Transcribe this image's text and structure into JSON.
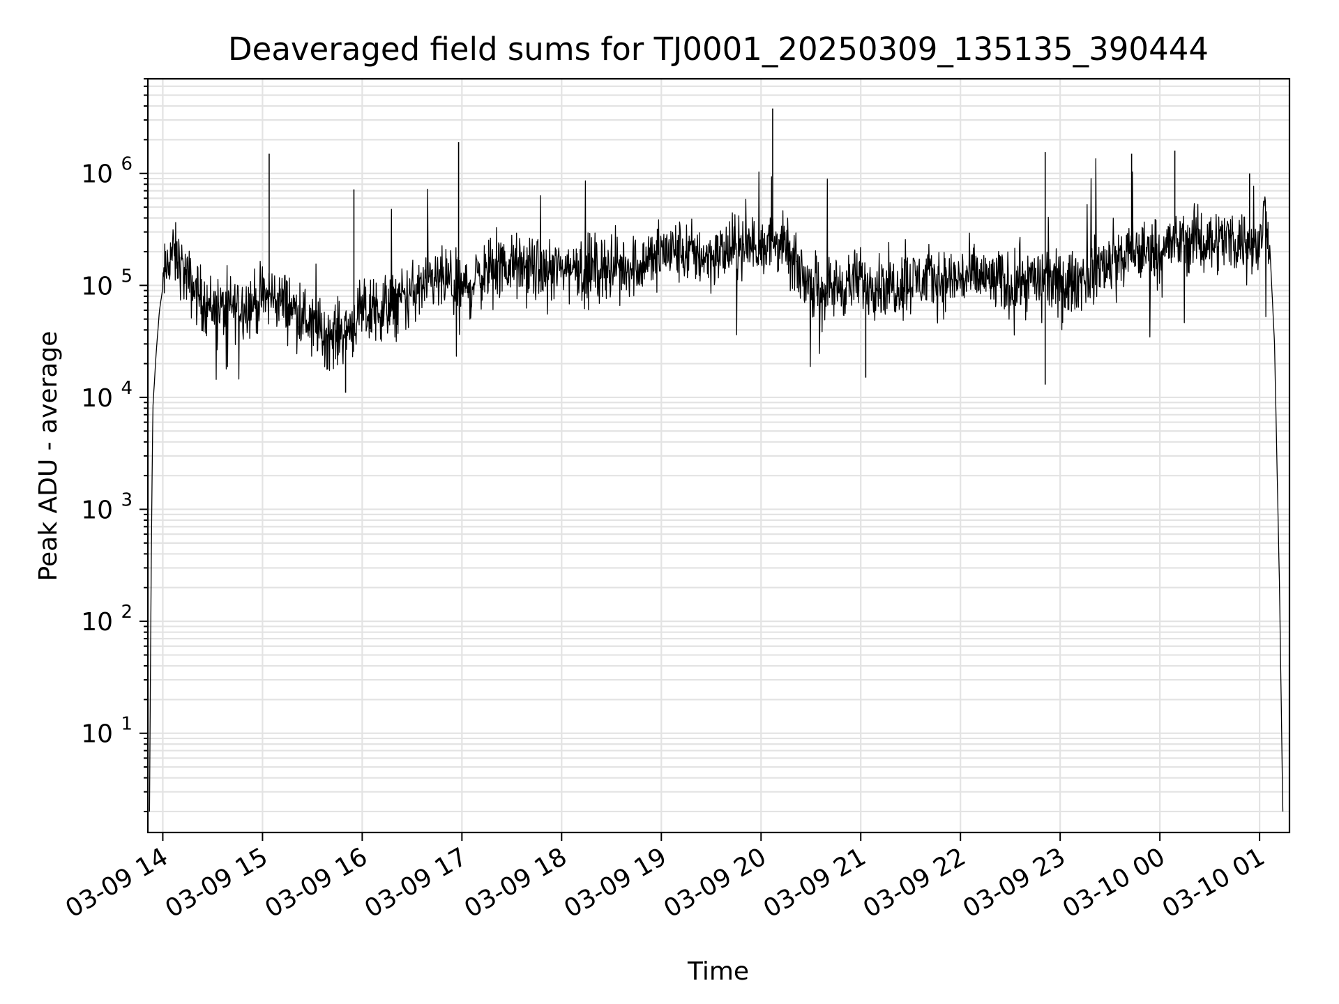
{
  "chart_data": {
    "type": "line",
    "title": "Deaveraged field sums for TJ0001_20250309_135135_390444",
    "xlabel": "Time",
    "ylabel": "Peak ADU - average",
    "y_scale": "log",
    "ylim": [
      1.3,
      7000000
    ],
    "xlim": [
      "2025-03-09 13:51",
      "2025-03-10 01:18"
    ],
    "grid": true,
    "line_color": "#000000",
    "x_ticks": [
      "03-09 14",
      "03-09 15",
      "03-09 16",
      "03-09 17",
      "03-09 18",
      "03-09 19",
      "03-09 20",
      "03-09 21",
      "03-09 22",
      "03-09 23",
      "03-10 00",
      "03-10 01"
    ],
    "y_ticks": [
      {
        "base": "10",
        "exp": "1"
      },
      {
        "base": "10",
        "exp": "2"
      },
      {
        "base": "10",
        "exp": "3"
      },
      {
        "base": "10",
        "exp": "4"
      },
      {
        "base": "10",
        "exp": "5"
      },
      {
        "base": "10",
        "exp": "6"
      }
    ],
    "series": [
      {
        "x": [
          "2025-03-09 13:52",
          "2025-03-09 13:53",
          "2025-03-09 13:54",
          "2025-03-09 13:56",
          "2025-03-09 13:58",
          "2025-03-09 14:01",
          "2025-03-09 14:05",
          "2025-03-09 14:10",
          "2025-03-09 14:15",
          "2025-03-09 14:25",
          "2025-03-09 14:35",
          "2025-03-09 14:45",
          "2025-03-09 14:55",
          "2025-03-09 15:00",
          "2025-03-09 15:05",
          "2025-03-09 15:10",
          "2025-03-09 15:20",
          "2025-03-09 15:30",
          "2025-03-09 15:40",
          "2025-03-09 15:50",
          "2025-03-09 16:00",
          "2025-03-09 16:10",
          "2025-03-09 16:20",
          "2025-03-09 16:30",
          "2025-03-09 16:40",
          "2025-03-09 16:50",
          "2025-03-09 17:00",
          "2025-03-09 17:10",
          "2025-03-09 17:20",
          "2025-03-09 17:30",
          "2025-03-09 17:40",
          "2025-03-09 17:50",
          "2025-03-09 18:00",
          "2025-03-09 18:10",
          "2025-03-09 18:20",
          "2025-03-09 18:30",
          "2025-03-09 18:40",
          "2025-03-09 18:50",
          "2025-03-09 19:00",
          "2025-03-09 19:10",
          "2025-03-09 19:20",
          "2025-03-09 19:30",
          "2025-03-09 19:40",
          "2025-03-09 19:50",
          "2025-03-09 20:00",
          "2025-03-09 20:10",
          "2025-03-09 20:20",
          "2025-03-09 20:30",
          "2025-03-09 20:40",
          "2025-03-09 20:50",
          "2025-03-09 21:00",
          "2025-03-09 21:10",
          "2025-03-09 21:20",
          "2025-03-09 21:30",
          "2025-03-09 21:40",
          "2025-03-09 21:50",
          "2025-03-09 22:00",
          "2025-03-09 22:10",
          "2025-03-09 22:20",
          "2025-03-09 22:30",
          "2025-03-09 22:40",
          "2025-03-09 22:50",
          "2025-03-09 23:00",
          "2025-03-09 23:10",
          "2025-03-09 23:20",
          "2025-03-09 23:30",
          "2025-03-09 23:40",
          "2025-03-09 23:50",
          "2025-03-10 00:00",
          "2025-03-10 00:10",
          "2025-03-10 00:20",
          "2025-03-10 00:30",
          "2025-03-10 00:40",
          "2025-03-10 00:50",
          "2025-03-10 00:57",
          "2025-03-10 01:00",
          "2025-03-10 01:03",
          "2025-03-10 01:06",
          "2025-03-10 01:09",
          "2025-03-10 01:12",
          "2025-03-10 01:14"
        ],
        "y": [
          2,
          300,
          8000,
          25000,
          60000,
          120000,
          200000,
          160000,
          110000,
          70000,
          60000,
          65000,
          70000,
          75000,
          80000,
          75000,
          60000,
          45000,
          35000,
          40000,
          55000,
          60000,
          70000,
          85000,
          100000,
          110000,
          90000,
          120000,
          140000,
          150000,
          140000,
          130000,
          140000,
          150000,
          140000,
          145000,
          150000,
          160000,
          200000,
          200000,
          190000,
          180000,
          200000,
          220000,
          230000,
          250000,
          150000,
          100000,
          95000,
          100000,
          110000,
          105000,
          100000,
          110000,
          115000,
          110000,
          115000,
          120000,
          110000,
          100000,
          110000,
          120000,
          95000,
          110000,
          140000,
          160000,
          180000,
          200000,
          210000,
          240000,
          250000,
          250000,
          260000,
          250000,
          230000,
          200000,
          500000,
          250000,
          30000,
          200,
          2
        ]
      }
    ],
    "spikes": {
      "x": [
        "2025-03-09 15:04",
        "2025-03-09 15:55",
        "2025-03-09 16:58",
        "2025-03-09 20:07",
        "2025-03-09 22:51",
        "2025-03-09 23:43",
        "2025-03-10 00:09",
        "2025-03-10 00:54",
        "2025-03-09 21:03",
        "2025-03-09 22:51",
        "2025-03-09 15:50"
      ],
      "y": [
        1500000,
        720000,
        1900000,
        3800000,
        1550000,
        1500000,
        1600000,
        1000000,
        15000,
        13000,
        11000
      ]
    }
  }
}
